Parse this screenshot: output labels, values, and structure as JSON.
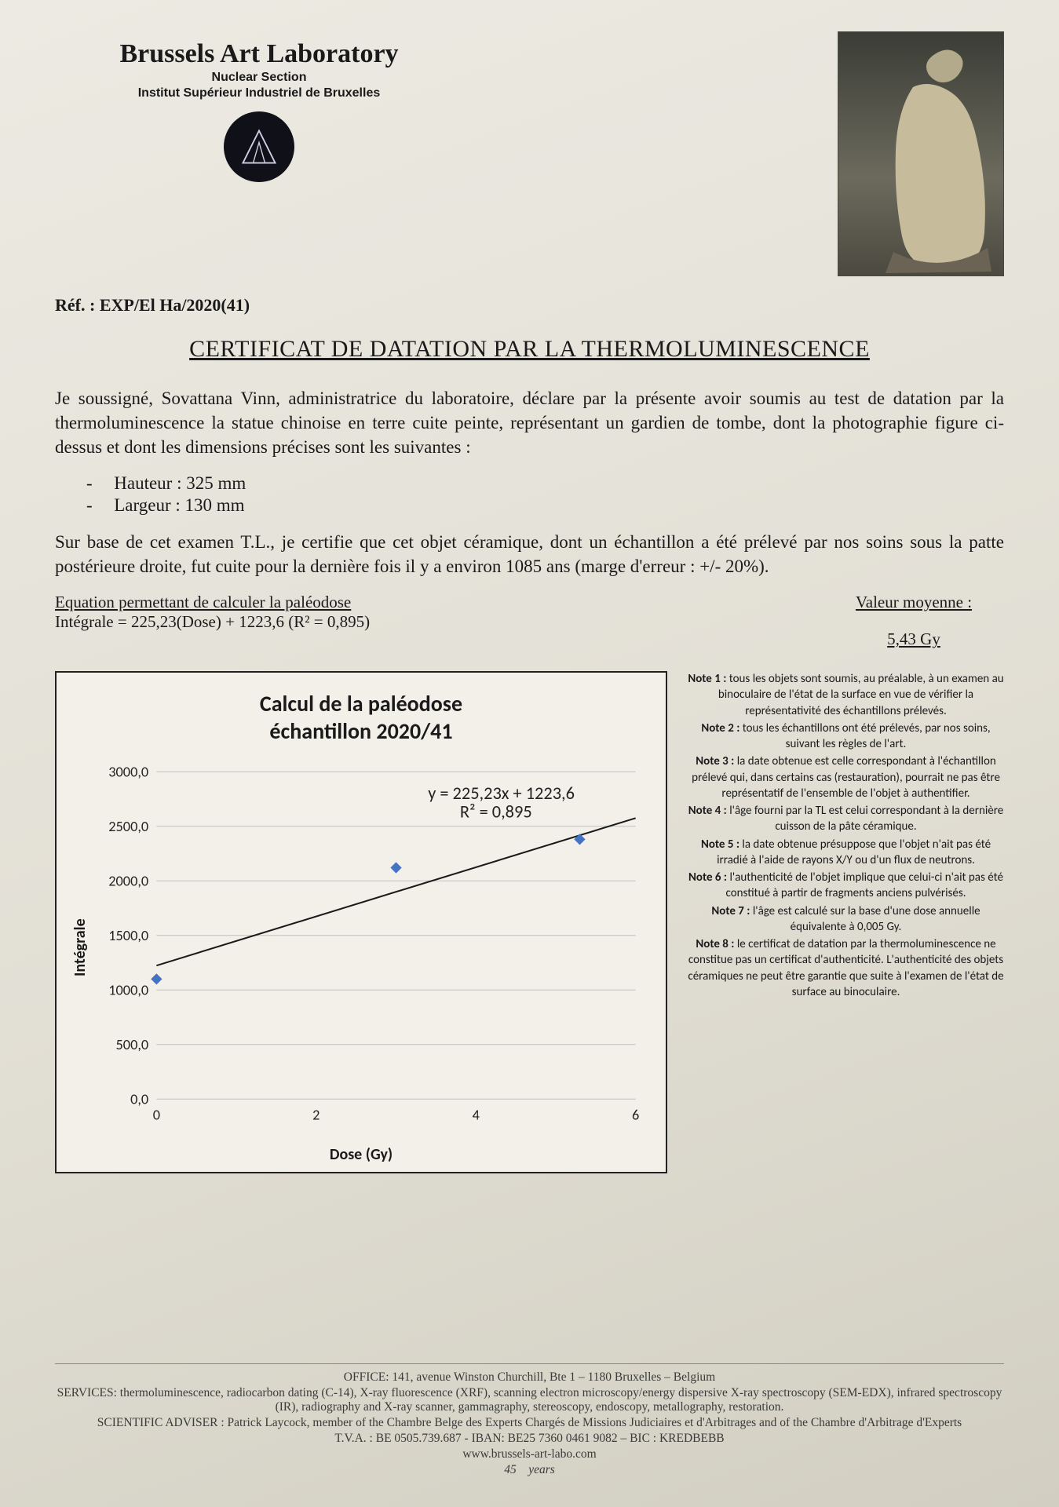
{
  "header": {
    "lab_name": "Brussels Art Laboratory",
    "section": "Nuclear Section",
    "institute": "Institut Supérieur Industriel de Bruxelles",
    "ref_label": "Réf. :",
    "ref_value": "EXP/El Ha/2020(41)"
  },
  "title": "CERTIFICAT DE DATATION PAR LA THERMOLUMINESCENCE",
  "body": {
    "p1": "Je soussigné, Sovattana Vinn, administratrice du laboratoire, déclare par la présente avoir soumis au test de datation par la thermoluminescence la statue chinoise en terre cuite peinte, représentant un gardien de tombe, dont la photographie figure ci-dessus et dont les dimensions précises sont les suivantes :",
    "dim_height_label": "Hauteur :",
    "dim_height_value": "325 mm",
    "dim_width_label": "Largeur :",
    "dim_width_value": "130 mm",
    "p2": "Sur base de cet examen T.L., je certifie que cet objet céramique, dont un échantillon a été prélevé par nos soins sous la patte postérieure droite, fut cuite pour la dernière fois il y a environ 1085 ans (marge d'erreur : +/- 20%)."
  },
  "equation": {
    "label": "Equation permettant de calculer la paléodose",
    "formula": "Intégrale = 225,23(Dose) + 1223,6   (R² = 0,895)",
    "mean_label": "Valeur moyenne :",
    "mean_value": "5,43 Gy"
  },
  "chart": {
    "type": "scatter-with-regression",
    "title_l1": "Calcul de la paléodose",
    "title_l2": "échantillon 2020/41",
    "xlabel": "Dose (Gy)",
    "ylabel": "Intégrale",
    "xlim": [
      0,
      6
    ],
    "ylim": [
      0,
      3000
    ],
    "xtick_step": 2,
    "ytick_step": 500,
    "ytick_labels": [
      "0,0",
      "500,0",
      "1000,0",
      "1500,0",
      "2000,0",
      "2500,0",
      "3000,0"
    ],
    "xtick_labels": [
      "0",
      "2",
      "4",
      "6"
    ],
    "grid_color": "#bfbfbf",
    "background_color": "#f2f0e8",
    "marker_style": "diamond",
    "marker_size": 14,
    "marker_color": "#4472c4",
    "line_color": "#1a1a1a",
    "line_width": 2,
    "regression": {
      "slope": 225.23,
      "intercept": 1223.6,
      "r2": 0.895
    },
    "annot_l1": "y = 225,23x + 1223,6",
    "annot_l2": "R² = 0,895",
    "points": [
      {
        "x": 0.0,
        "y": 1100
      },
      {
        "x": 3.0,
        "y": 2120
      },
      {
        "x": 5.3,
        "y": 2380
      }
    ],
    "title_fontsize": 28,
    "label_fontsize": 20,
    "tick_fontsize": 18
  },
  "notes": [
    {
      "head": "Note 1 :",
      "text": "tous les objets sont soumis, au préalable, à un examen au binoculaire de l'état de la surface en vue de vérifier la représentativité des échantillons prélevés."
    },
    {
      "head": "Note 2 :",
      "text": "tous les échantillons ont été prélevés, par nos soins, suivant les règles de l'art."
    },
    {
      "head": "Note 3 :",
      "text": "la date obtenue est celle correspondant à l'échantillon prélevé qui, dans certains cas (restauration), pourrait ne pas être représentatif de l'ensemble de l'objet à authentifier."
    },
    {
      "head": "Note 4 :",
      "text": "l'âge fourni par la TL est celui correspondant à la dernière cuisson de la pâte céramique."
    },
    {
      "head": "Note 5 :",
      "text": "la date obtenue présuppose que l'objet n'ait pas été irradié à l'aide de rayons X/Y ou d'un flux de neutrons."
    },
    {
      "head": "Note 6 :",
      "text": "l'authenticité de l'objet implique que celui-ci n'ait pas été constitué à partir de fragments anciens pulvérisés."
    },
    {
      "head": "Note 7 :",
      "text": "l'âge est calculé sur la base d'une dose annuelle équivalente à 0,005 Gy."
    },
    {
      "head": "Note 8 :",
      "text": "le certificat de datation par la thermoluminescence ne constitue pas un certificat d'authenticité. L'authenticité des objets céramiques ne peut être garantie que suite à l'examen de l'état de surface au binoculaire."
    }
  ],
  "footer": {
    "office": "OFFICE: 141, avenue Winston Churchill, Bte 1 – 1180 Bruxelles – Belgium",
    "services": "SERVICES: thermoluminescence, radiocarbon dating (C-14), X-ray fluorescence (XRF), scanning electron microscopy/energy dispersive X-ray spectroscopy (SEM-EDX), infrared spectroscopy (IR), radiography and X-ray scanner, gammagraphy, stereoscopy, endoscopy, metallography, restoration.",
    "adviser": "SCIENTIFIC ADVISER : Patrick Laycock, member of the Chambre Belge des Experts Chargés de Missions Judiciaires et d'Arbitrages and of the Chambre d'Arbitrage d'Experts",
    "vat": "T.V.A. : BE 0505.739.687  -  IBAN: BE25 7360 0461 9082  –  BIC : KREDBEBB",
    "web": "www.brussels-art-labo.com",
    "years_num": "45",
    "years_word": "years"
  }
}
